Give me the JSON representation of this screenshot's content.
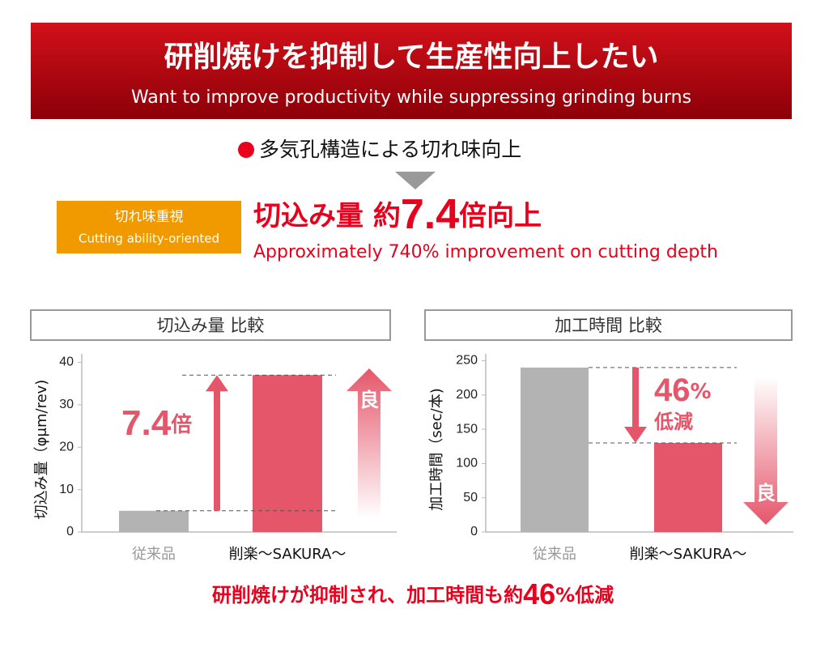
{
  "header": {
    "title": "研削焼けを抑制して生産性向上したい",
    "subtitle": "Want to improve productivity while suppressing grinding burns"
  },
  "feature": "多気孔構造による切れ味向上",
  "badge": {
    "title": "切れ味重視",
    "subtitle": "Cutting ability-oriented"
  },
  "headline": {
    "lead": "切込み量 約",
    "number": "7.4",
    "tail": "倍向上",
    "english": "Approximately 740% improvement on cutting depth"
  },
  "chart_data": [
    {
      "type": "bar",
      "title": "切込み量 比較",
      "y_label": "切込み量（φμm/rev)",
      "categories": [
        "従来品",
        "削楽〜SAKURA〜"
      ],
      "values": [
        5,
        37
      ],
      "colors": [
        "#b3b3b3",
        "#e5566a"
      ],
      "ylim": [
        0,
        42
      ],
      "yticks": [
        0,
        10,
        20,
        30,
        40
      ],
      "annotation": {
        "number": "7.4",
        "unit": "倍"
      },
      "arrow_label": "良"
    },
    {
      "type": "bar",
      "title": "加工時間 比較",
      "y_label": "加工時間（sec/本)",
      "categories": [
        "従来品",
        "削楽〜SAKURA〜"
      ],
      "values": [
        240,
        130
      ],
      "colors": [
        "#b3b3b3",
        "#e5566a"
      ],
      "ylim": [
        0,
        260
      ],
      "yticks": [
        0,
        50,
        100,
        150,
        200,
        250
      ],
      "annotation": {
        "number": "46",
        "unit": "%",
        "text": "低減"
      },
      "arrow_label": "良"
    }
  ],
  "footer": {
    "lead": "研削焼けが抑制され、加工時間も約",
    "number": "46",
    "tail": "%低減"
  }
}
